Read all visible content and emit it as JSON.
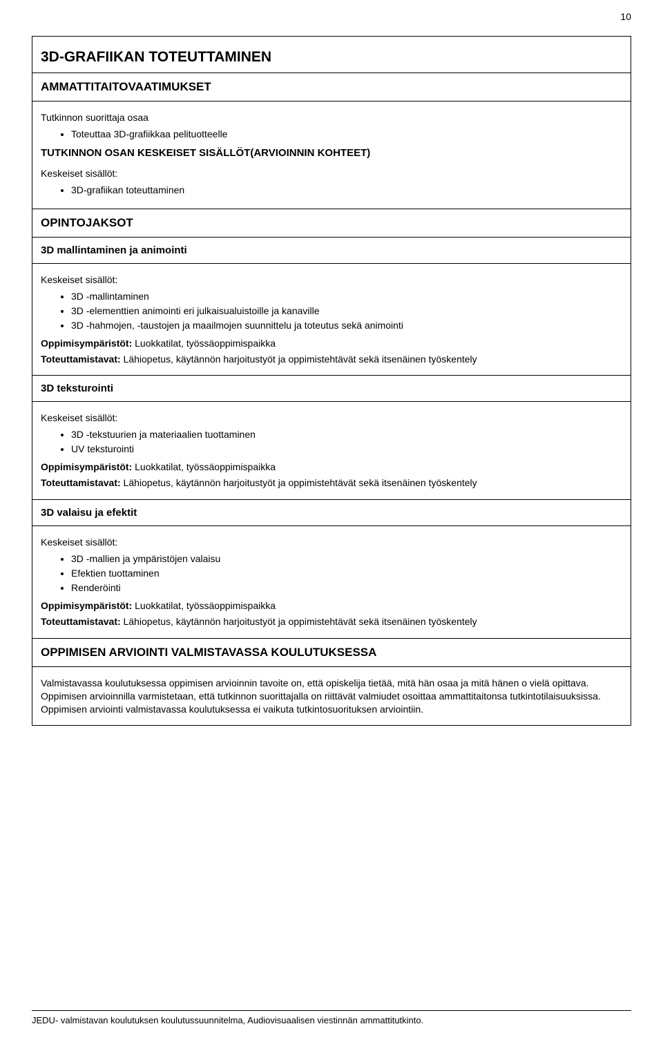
{
  "page_number": "10",
  "title": "3D-GRAFIIKAN TOTEUTTAMINEN",
  "ammattit_heading": "AMMATTITAITOVAATIMUKSET",
  "ammattit_intro": "Tutkinnon suorittaja osaa",
  "ammattit_bullets": [
    "Toteuttaa 3D-grafiikkaa pelituotteelle"
  ],
  "osan_heading": "TUTKINNON OSAN KESKEISET SISÄLLÖT(ARVIOINNIN KOHTEET)",
  "keskeiset_label": "Keskeiset sisällöt:",
  "osan_bullets": [
    "3D-grafiikan toteuttaminen"
  ],
  "opintojaksot_heading": "OPINTOJAKSOT",
  "sec1": {
    "title": "3D mallintaminen ja animointi",
    "bullets": [
      "3D -mallintaminen",
      "3D -elementtien animointi eri julkaisualuistoille ja kanaville",
      "3D -hahmojen, -taustojen ja maailmojen suunnittelu ja toteutus sekä animointi"
    ],
    "env_label": "Oppimisympäristöt:",
    "env_text": " Luokkatilat, työssäoppimispaikka",
    "method_label": "Toteuttamistavat:",
    "method_text": " Lähiopetus, käytännön harjoitustyöt ja oppimistehtävät sekä itsenäinen työskentely"
  },
  "sec2": {
    "title": "3D teksturointi",
    "bullets": [
      "3D -tekstuurien ja materiaalien tuottaminen",
      "UV teksturointi"
    ],
    "env_label": "Oppimisympäristöt:",
    "env_text": " Luokkatilat, työssäoppimispaikka",
    "method_label": "Toteuttamistavat:",
    "method_text": " Lähiopetus, käytännön harjoitustyöt ja oppimistehtävät sekä itsenäinen työskentely"
  },
  "sec3": {
    "title": "3D valaisu ja efektit",
    "bullets": [
      "3D -mallien ja ympäristöjen valaisu",
      "Efektien tuottaminen",
      "Renderöinti"
    ],
    "env_label": "Oppimisympäristöt:",
    "env_text": " Luokkatilat, työssäoppimispaikka",
    "method_label": "Toteuttamistavat:",
    "method_text": " Lähiopetus, käytännön harjoitustyöt ja oppimistehtävät sekä itsenäinen työskentely"
  },
  "arviointi_heading": "OPPIMISEN ARVIOINTI VALMISTAVASSA KOULUTUKSESSA",
  "arviointi_body": "Valmistavassa koulutuksessa oppimisen arvioinnin tavoite on, että opiskelija tietää, mitä hän osaa ja mitä hänen o vielä opittava. Oppimisen arvioinnilla varmistetaan, että tutkinnon suorittajalla on riittävät valmiudet osoittaa ammattitaitonsa tutkintotilaisuuksissa. Oppimisen arviointi valmistavassa koulutuksessa ei vaikuta tutkintosuorituksen arviointiin.",
  "footer": "JEDU- valmistavan koulutuksen koulutussuunnitelma, Audiovisuaalisen viestinnän ammattitutkinto."
}
